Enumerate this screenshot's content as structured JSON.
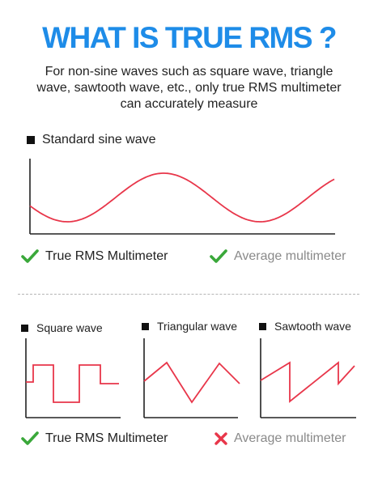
{
  "title": "WHAT IS TRUE RMS ?",
  "intro": {
    "line1": "For non-sine waves such as square wave, triangle",
    "line2": "wave, sawtooth wave, etc., only true RMS multimeter",
    "line3": "can accurately measure"
  },
  "sections": {
    "sine": {
      "label": "Standard sine wave"
    },
    "square": {
      "label": "Square wave"
    },
    "triangular": {
      "label": "Triangular wave"
    },
    "sawtooth": {
      "label": "Sawtooth wave"
    }
  },
  "sine_result": {
    "true_rms": "True RMS Multimeter",
    "average": "Average multimeter",
    "true_rms_icon": "check-icon",
    "average_icon": "check-icon"
  },
  "nonsine_result": {
    "true_rms": "True RMS Multimeter",
    "average": "Average multimeter",
    "true_rms_icon": "check-icon",
    "average_icon": "cross-icon"
  },
  "colors": {
    "title": "#1e8ce8",
    "wave": "#e8364a",
    "check": "#3aa83a",
    "cross": "#e8364a",
    "muted_text": "#8a8a8a"
  }
}
